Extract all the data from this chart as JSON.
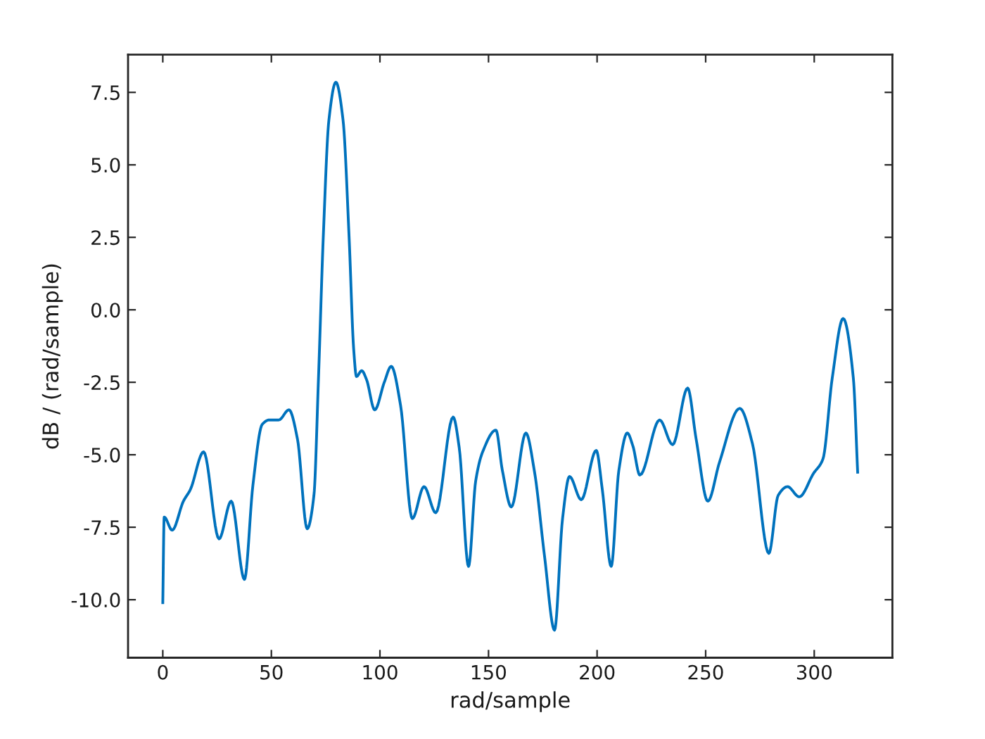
{
  "chart_data": {
    "type": "line",
    "xlabel": "rad/sample",
    "ylabel": "dB / (rad/sample)",
    "color": "#0072bd",
    "x": [
      0,
      0.65,
      4.3,
      9.5,
      12.7,
      18.8,
      25.9,
      31.5,
      37.6,
      41.5,
      45.8,
      49,
      53.4,
      58.1,
      62,
      66.5,
      69.6,
      71.7,
      73.9,
      76.5,
      79.7,
      83,
      85.8,
      87.9,
      89.2,
      91.6,
      93.8,
      97.6,
      102,
      105.2,
      109.5,
      114.9,
      120.3,
      125.7,
      133.7,
      136.5,
      140.8,
      144.1,
      147.3,
      153.4,
      156.4,
      160.5,
      167.2,
      171.1,
      175.8,
      180.4,
      184.1,
      187.3,
      192.7,
      199.6,
      202.4,
      206.5,
      210,
      213.9,
      216.5,
      219.7,
      228.8,
      234.8,
      241.7,
      245.6,
      251,
      256.4,
      265.7,
      271.5,
      279.1,
      283.4,
      287.7,
      293.1,
      299.6,
      304,
      308.3,
      313.3,
      318,
      320
    ],
    "values": [
      -10.1,
      -7.15,
      -7.6,
      -6.6,
      -6.2,
      -4.9,
      -7.9,
      -6.6,
      -9.3,
      -6.05,
      -3.95,
      -3.8,
      -3.8,
      -3.45,
      -4.45,
      -7.55,
      -6.4,
      -2.35,
      2.5,
      6.55,
      7.85,
      6.55,
      2.5,
      -1.35,
      -2.3,
      -2.1,
      -2.4,
      -3.45,
      -2.5,
      -1.95,
      -3.3,
      -7.2,
      -6.1,
      -7.0,
      -3.7,
      -4.75,
      -8.85,
      -5.9,
      -4.9,
      -4.15,
      -5.55,
      -6.8,
      -4.25,
      -5.55,
      -8.5,
      -11.05,
      -7.2,
      -5.75,
      -6.55,
      -4.85,
      -6.2,
      -8.85,
      -5.55,
      -4.25,
      -4.7,
      -5.7,
      -3.8,
      -4.65,
      -2.7,
      -4.45,
      -6.6,
      -5.25,
      -3.4,
      -4.6,
      -8.4,
      -6.4,
      -6.1,
      -6.45,
      -5.65,
      -5.15,
      -2.35,
      -0.3,
      -2.35,
      -5.6
    ],
    "xlim": [
      -16,
      336
    ],
    "ylim": [
      -12.0,
      8.8
    ],
    "xticks": [
      0,
      50,
      100,
      150,
      200,
      250,
      300
    ],
    "yticks": [
      7.5,
      {
        "value": 5,
        "label": "5.0"
      },
      2.5,
      {
        "value": 0,
        "label": "0.0"
      },
      -2.5,
      {
        "value": -5,
        "label": "-5.0"
      },
      -7.5,
      {
        "value": -10,
        "label": "-10.0"
      }
    ]
  }
}
